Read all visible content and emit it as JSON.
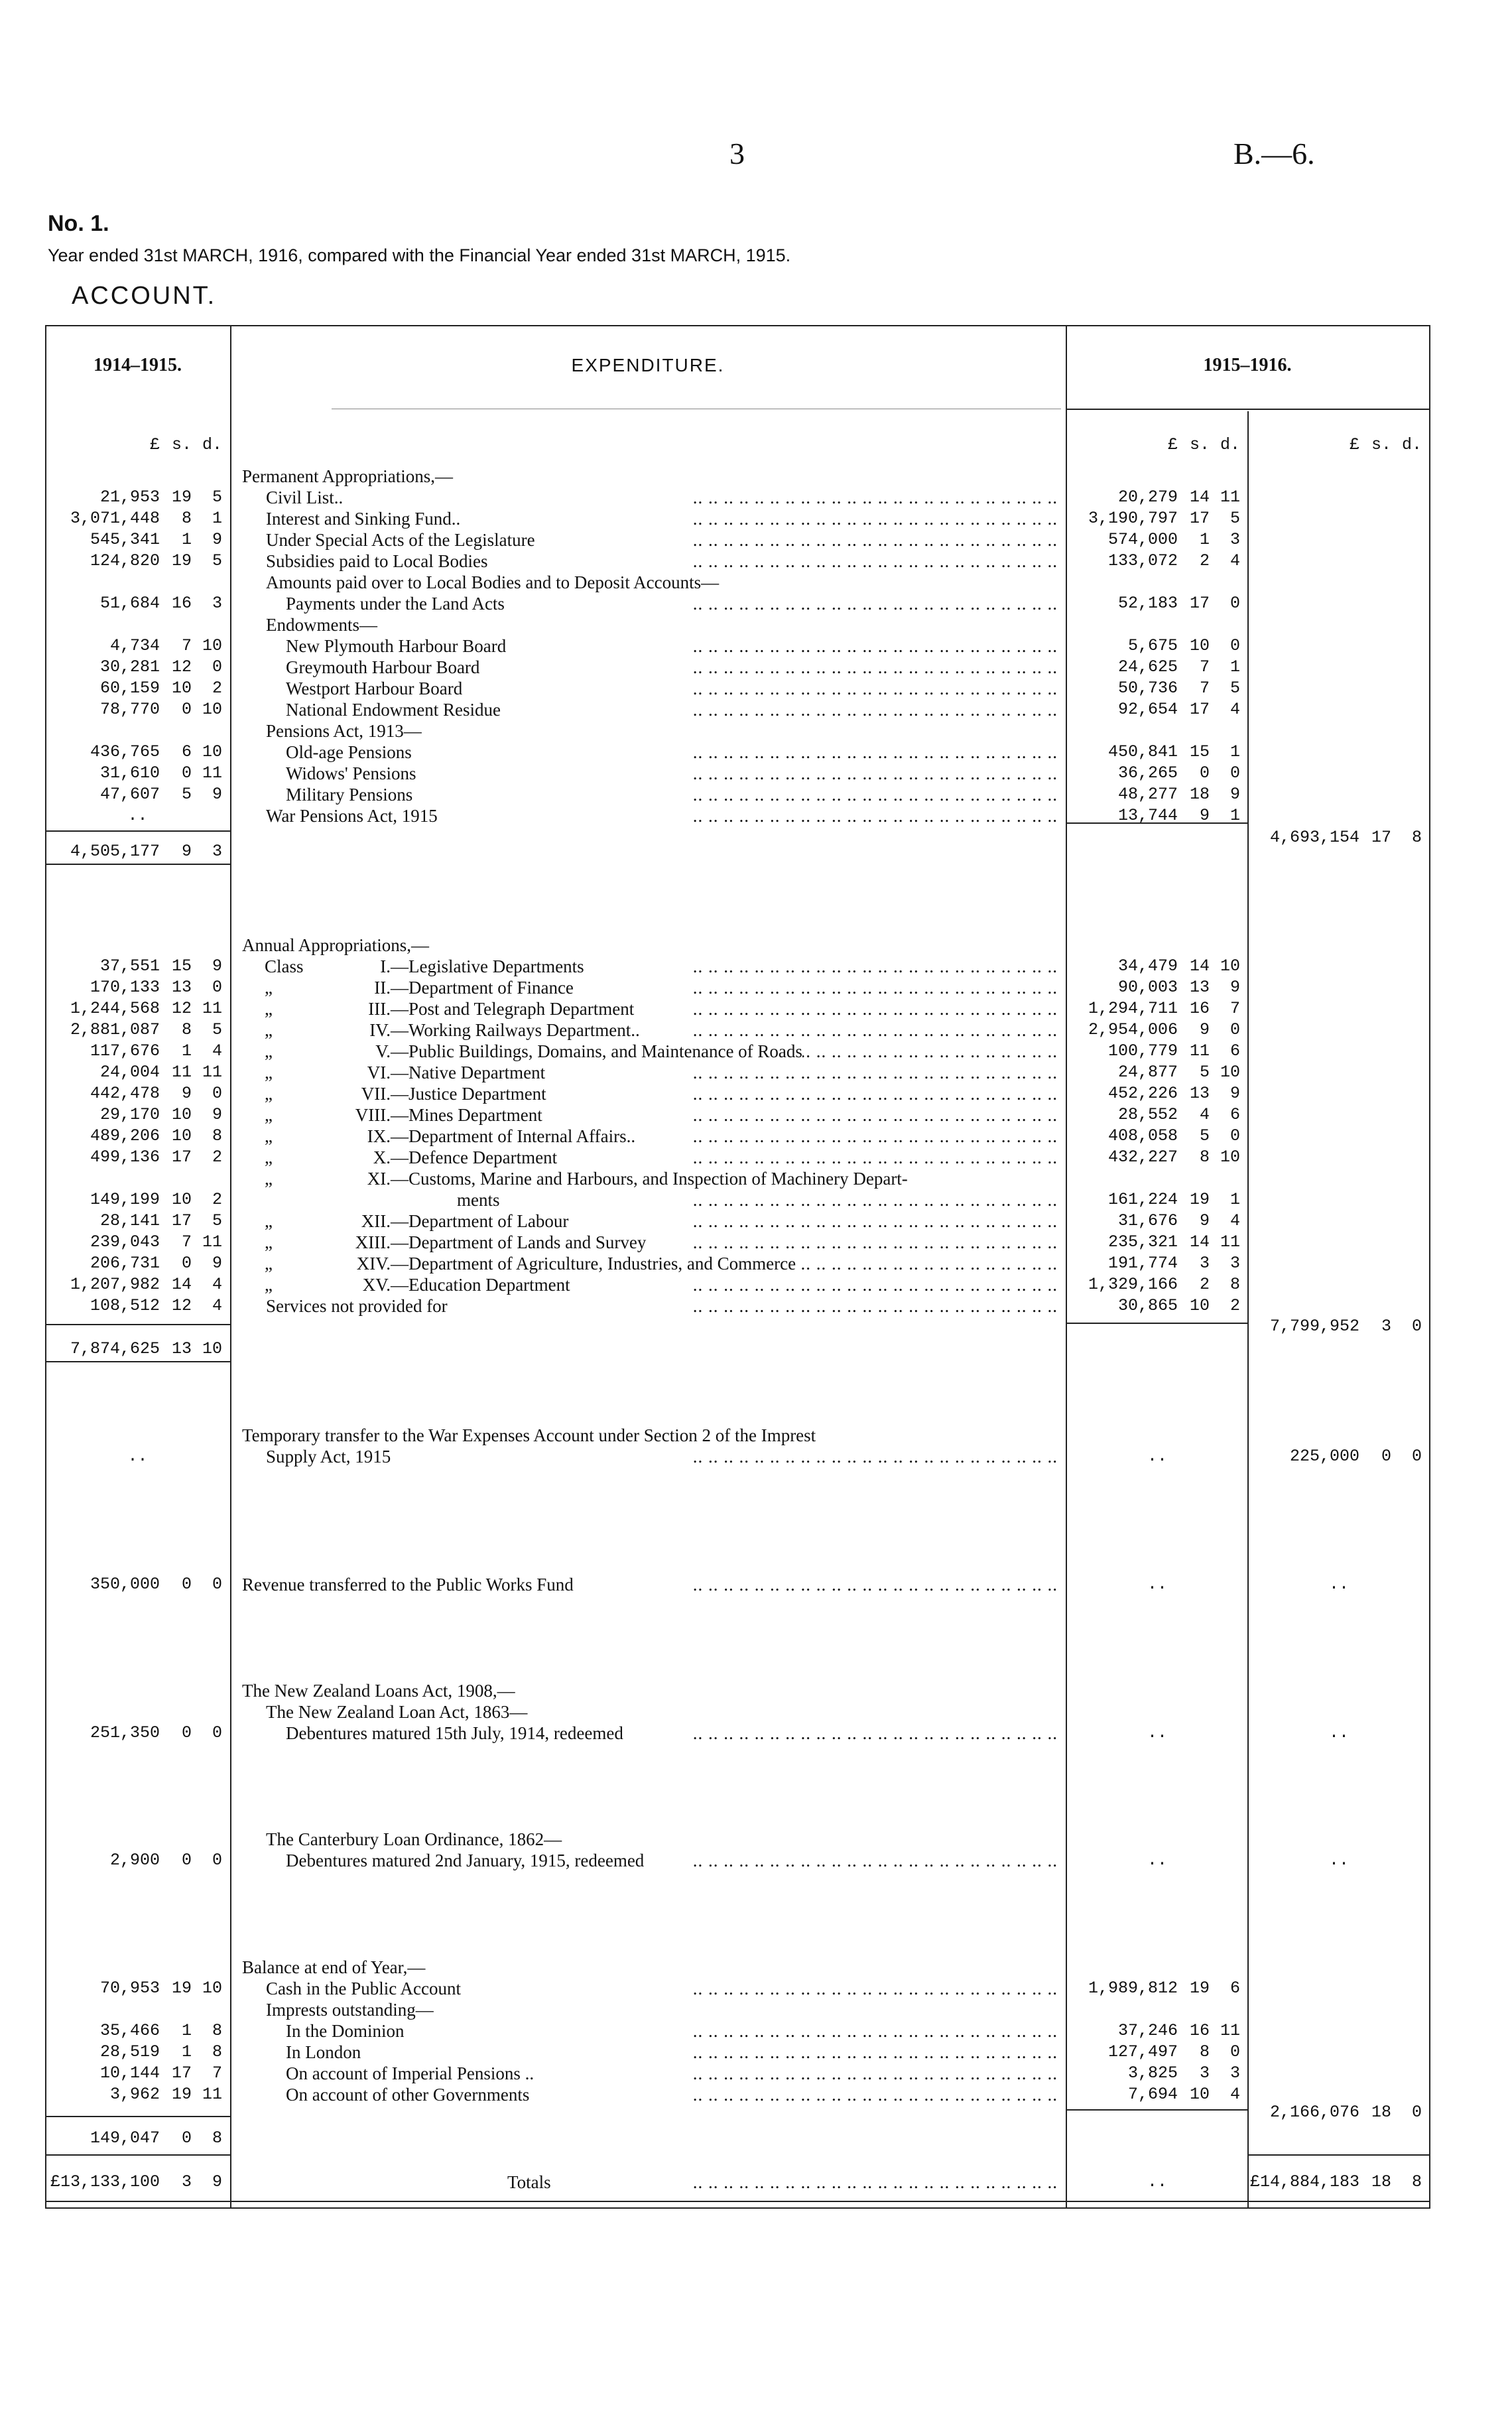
{
  "page_number": "3",
  "report_ref": "B.—6.",
  "doc_no": "No. 1.",
  "subtitle": "Year ended 31st MARCH, 1916, compared with the Financial Year ended 31st MARCH, 1915.",
  "title": "ACCOUNT.",
  "table": {
    "col_prev": "1914–1915.",
    "col_desc": "EXPENDITURE.",
    "col_cur": "1915–1916.",
    "currency": [
      "£",
      "s.",
      "d."
    ],
    "leader": ".. .. .. .. .. .. .. .. .. .. .. .. .. .. .. .. .. .. .. .. .. .. .. .."
  },
  "sections": [
    {
      "rows": [
        {
          "t": "Permanent Appropriations,—",
          "i": 0
        },
        {
          "t": "Civil List..",
          "i": 1,
          "p": [
            "21,953",
            "19",
            "5"
          ],
          "c": [
            "20,279",
            "14",
            "11"
          ],
          "dots": true
        },
        {
          "t": "Interest and Sinking Fund..",
          "i": 1,
          "p": [
            "3,071,448",
            "8",
            "1"
          ],
          "c": [
            "3,190,797",
            "17",
            "5"
          ],
          "dots": true
        },
        {
          "t": "Under Special Acts of the Legislature",
          "i": 1,
          "p": [
            "545,341",
            "1",
            "9"
          ],
          "c": [
            "574,000",
            "1",
            "3"
          ],
          "dots": true
        },
        {
          "t": "Subsidies paid to Local Bodies",
          "i": 1,
          "p": [
            "124,820",
            "19",
            "5"
          ],
          "c": [
            "133,072",
            "2",
            "4"
          ],
          "dots": true
        },
        {
          "t": "Amounts paid over to Local Bodies and to Deposit Accounts—",
          "i": 1
        },
        {
          "t": "Payments under the Land Acts",
          "i": 2,
          "p": [
            "51,684",
            "16",
            "3"
          ],
          "c": [
            "52,183",
            "17",
            "0"
          ],
          "dots": true
        },
        {
          "t": "Endowments—",
          "i": 1
        },
        {
          "t": "New Plymouth Harbour Board",
          "i": 2,
          "p": [
            "4,734",
            "7",
            "10"
          ],
          "c": [
            "5,675",
            "10",
            "0"
          ],
          "dots": true
        },
        {
          "t": "Greymouth Harbour Board",
          "i": 2,
          "p": [
            "30,281",
            "12",
            "0"
          ],
          "c": [
            "24,625",
            "7",
            "1"
          ],
          "dots": true
        },
        {
          "t": "Westport Harbour Board",
          "i": 2,
          "p": [
            "60,159",
            "10",
            "2"
          ],
          "c": [
            "50,736",
            "7",
            "5"
          ],
          "dots": true
        },
        {
          "t": "National Endowment Residue",
          "i": 2,
          "p": [
            "78,770",
            "0",
            "10"
          ],
          "c": [
            "92,654",
            "17",
            "4"
          ],
          "dots": true
        },
        {
          "t": "Pensions Act, 1913—",
          "i": 1
        },
        {
          "t": "Old-age Pensions",
          "i": 2,
          "p": [
            "436,765",
            "6",
            "10"
          ],
          "c": [
            "450,841",
            "15",
            "1"
          ],
          "dots": true
        },
        {
          "t": "Widows' Pensions",
          "i": 2,
          "p": [
            "31,610",
            "0",
            "11"
          ],
          "c": [
            "36,265",
            "0",
            "0"
          ],
          "dots": true
        },
        {
          "t": "Military Pensions",
          "i": 2,
          "p": [
            "47,607",
            "5",
            "9"
          ],
          "c": [
            "48,277",
            "18",
            "9"
          ],
          "dots": true
        },
        {
          "t": "War Pensions Act, 1915",
          "i": 1,
          "p": [
            ".."
          ],
          "c": [
            "13,744",
            "9",
            "1"
          ],
          "dots": true
        }
      ],
      "subtotal_prev": [
        "4,505,177",
        "9",
        "3"
      ],
      "total_cur": [
        "4,693,154",
        "17",
        "8"
      ]
    },
    {
      "rows": [
        {
          "t": "Annual Appropriations,—",
          "i": 0
        },
        {
          "pre": "Class",
          "num": "I.",
          "t": "—Legislative Departments",
          "p": [
            "37,551",
            "15",
            "9"
          ],
          "c": [
            "34,479",
            "14",
            "10"
          ],
          "dots": true
        },
        {
          "pre": "„",
          "num": "II.",
          "t": "—Department of Finance",
          "p": [
            "170,133",
            "13",
            "0"
          ],
          "c": [
            "90,003",
            "13",
            "9"
          ],
          "dots": true
        },
        {
          "pre": "„",
          "num": "III.",
          "t": "—Post and Telegraph Department",
          "p": [
            "1,244,568",
            "12",
            "11"
          ],
          "c": [
            "1,294,711",
            "16",
            "7"
          ],
          "dots": true
        },
        {
          "pre": "„",
          "num": "IV.",
          "t": "—Working Railways Department..",
          "p": [
            "2,881,087",
            "8",
            "5"
          ],
          "c": [
            "2,954,006",
            "9",
            "0"
          ],
          "dots": true
        },
        {
          "pre": "„",
          "num": "V.",
          "t": "—Public Buildings, Domains, and Maintenance of Roads",
          "p": [
            "117,676",
            "1",
            "4"
          ],
          "c": [
            "100,779",
            "11",
            "6"
          ],
          "dots": true
        },
        {
          "pre": "„",
          "num": "VI.",
          "t": "—Native Department",
          "p": [
            "24,004",
            "11",
            "11"
          ],
          "c": [
            "24,877",
            "5",
            "10"
          ],
          "dots": true
        },
        {
          "pre": "„",
          "num": "VII.",
          "t": "—Justice Department",
          "p": [
            "442,478",
            "9",
            "0"
          ],
          "c": [
            "452,226",
            "13",
            "9"
          ],
          "dots": true
        },
        {
          "pre": "„",
          "num": "VIII.",
          "t": "—Mines Department",
          "p": [
            "29,170",
            "10",
            "9"
          ],
          "c": [
            "28,552",
            "4",
            "6"
          ],
          "dots": true
        },
        {
          "pre": "„",
          "num": "IX.",
          "t": "—Department of Internal Affairs..",
          "p": [
            "489,206",
            "10",
            "8"
          ],
          "c": [
            "408,058",
            "5",
            "0"
          ],
          "dots": true
        },
        {
          "pre": "„",
          "num": "X.",
          "t": "—Defence Department",
          "p": [
            "499,136",
            "17",
            "2"
          ],
          "c": [
            "432,227",
            "8",
            "10"
          ],
          "dots": true
        },
        {
          "pre": "„",
          "num": "XI.",
          "t": "—Customs, Marine and Harbours, and Inspection of Machinery Depart-"
        },
        {
          "pre": "",
          "num": "",
          "t": "ments",
          "cont": true,
          "p": [
            "149,199",
            "10",
            "2"
          ],
          "c": [
            "161,224",
            "19",
            "1"
          ],
          "dots": true
        },
        {
          "pre": "„",
          "num": "XII.",
          "t": "—Department of Labour",
          "p": [
            "28,141",
            "17",
            "5"
          ],
          "c": [
            "31,676",
            "9",
            "4"
          ],
          "dots": true
        },
        {
          "pre": "„",
          "num": "XIII.",
          "t": "—Department of Lands and Survey",
          "p": [
            "239,043",
            "7",
            "11"
          ],
          "c": [
            "235,321",
            "14",
            "11"
          ],
          "dots": true
        },
        {
          "pre": "„",
          "num": "XIV.",
          "t": "—Department of Agriculture, Industries, and Commerce",
          "p": [
            "206,731",
            "0",
            "9"
          ],
          "c": [
            "191,774",
            "3",
            "3"
          ],
          "dots": true
        },
        {
          "pre": "„",
          "num": "XV.",
          "t": "—Education Department",
          "p": [
            "1,207,982",
            "14",
            "4"
          ],
          "c": [
            "1,329,166",
            "2",
            "8"
          ],
          "dots": true
        },
        {
          "t": "Services not provided for",
          "i": 1,
          "p": [
            "108,512",
            "12",
            "4"
          ],
          "c": [
            "30,865",
            "10",
            "2"
          ],
          "dots": true
        }
      ],
      "subtotal_prev": [
        "7,874,625",
        "13",
        "10"
      ],
      "total_cur": [
        "7,799,952",
        "3",
        "0"
      ]
    },
    {
      "rows": [
        {
          "t": "Temporary transfer to the War Expenses Account under Section 2 of the Imprest",
          "i": 0
        },
        {
          "t": "Supply Act, 1915",
          "i": 1,
          "p": [
            ".."
          ],
          "c": [
            ".."
          ],
          "tt": [
            "225,000",
            "0",
            "0"
          ],
          "dots": true
        }
      ]
    },
    {
      "rows": [
        {
          "t": "Revenue transferred to the Public Works Fund",
          "i": 0,
          "p": [
            "350,000",
            "0",
            "0"
          ],
          "c": [
            ".."
          ],
          "tt": [
            ".."
          ],
          "dots": true
        }
      ]
    },
    {
      "rows": [
        {
          "t": "The New Zealand Loans Act, 1908,—",
          "i": 0
        },
        {
          "t": "The New Zealand Loan Act, 1863—",
          "i": 1
        },
        {
          "t": "Debentures matured 15th July, 1914, redeemed",
          "i": 2,
          "p": [
            "251,350",
            "0",
            "0"
          ],
          "c": [
            ".."
          ],
          "tt": [
            ".."
          ],
          "dots": true
        }
      ]
    },
    {
      "rows": [
        {
          "t": "The Canterbury Loan Ordinance, 1862—",
          "i": 1
        },
        {
          "t": "Debentures matured 2nd January, 1915, redeemed",
          "i": 2,
          "p": [
            "2,900",
            "0",
            "0"
          ],
          "c": [
            ".."
          ],
          "tt": [
            ".."
          ],
          "dots": true
        }
      ]
    },
    {
      "rows": [
        {
          "t": "Balance at end of Year,—",
          "i": 0
        },
        {
          "t": "Cash in the Public Account",
          "i": 1,
          "p": [
            "70,953",
            "19",
            "10"
          ],
          "c": [
            "1,989,812",
            "19",
            "6"
          ],
          "dots": true
        },
        {
          "t": "Imprests outstanding—",
          "i": 1
        },
        {
          "t": "In the Dominion",
          "i": 2,
          "p": [
            "35,466",
            "1",
            "8"
          ],
          "c": [
            "37,246",
            "16",
            "11"
          ],
          "dots": true
        },
        {
          "t": "In London",
          "i": 2,
          "p": [
            "28,519",
            "1",
            "8"
          ],
          "c": [
            "127,497",
            "8",
            "0"
          ],
          "dots": true
        },
        {
          "t": "On account of Imperial Pensions ..",
          "i": 2,
          "p": [
            "10,144",
            "17",
            "7"
          ],
          "c": [
            "3,825",
            "3",
            "3"
          ],
          "dots": true
        },
        {
          "t": "On account of other Governments",
          "i": 2,
          "p": [
            "3,962",
            "19",
            "11"
          ],
          "c": [
            "7,694",
            "10",
            "4"
          ],
          "dots": true
        }
      ],
      "subtotal_prev": [
        "149,047",
        "0",
        "8"
      ],
      "total_cur": [
        "2,166,076",
        "18",
        "0"
      ]
    }
  ],
  "totals": {
    "label": "Totals",
    "prev": [
      "£13,133,100",
      "3",
      "9"
    ],
    "cur": [
      ".."
    ],
    "total": [
      "£14,884,183",
      "18",
      "8"
    ]
  }
}
